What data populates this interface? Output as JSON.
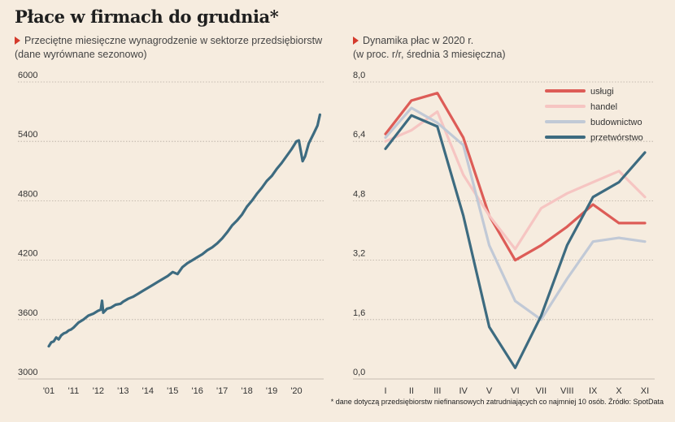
{
  "header": {
    "title": "Płace w firmach do grudnia*",
    "left_subtitle_1": "Przeciętne miesięczne wynagrodzenie w sektorze przedsiębiorstw",
    "left_subtitle_2": "(dane wyrównane sezonowo)",
    "right_subtitle_1": "Dynamika płac w 2020 r.",
    "right_subtitle_2": "(w proc. r/r, średnia 3 miesięczna)"
  },
  "footnote": "* dane dotyczą przedsiębiorstw niefinansowych zatrudniających co najmniej 10 osób. Źródło: SpotData",
  "colors": {
    "line_left": "#3d6b80",
    "uslugi": "#dd5c57",
    "handel": "#f6c5c2",
    "budownictwo": "#c1c9d6",
    "przetworstwo": "#3d6b80",
    "grid": "#b5aca2",
    "triangle": "#d43a2c"
  },
  "chart_data": [
    {
      "type": "line",
      "ylim": [
        3000,
        6000
      ],
      "y_ticks": [
        "3000",
        "3600",
        "4200",
        "4800",
        "5400",
        "6000"
      ],
      "x_ticks": [
        {
          "label": "'01",
          "x": 2001
        },
        {
          "label": "'11",
          "x": 2002
        },
        {
          "label": "'12",
          "x": 2003
        },
        {
          "label": "'13",
          "x": 2004
        },
        {
          "label": "'14",
          "x": 2005
        },
        {
          "label": "'15",
          "x": 2006
        },
        {
          "label": "'16",
          "x": 2007
        },
        {
          "label": "'17",
          "x": 2008
        },
        {
          "label": "'18",
          "x": 2009
        },
        {
          "label": "'19",
          "x": 2010
        },
        {
          "label": "'20",
          "x": 2011
        }
      ],
      "xlim": [
        2001,
        2012.1
      ],
      "series": [
        {
          "x": [
            2001.0,
            2001.1,
            2001.2,
            2001.3,
            2001.4,
            2001.5,
            2001.6,
            2001.7,
            2001.8,
            2001.9,
            2002.0,
            2002.2,
            2002.4,
            2002.6,
            2002.8,
            2003.0,
            2003.1,
            2003.15,
            2003.2,
            2003.35,
            2003.5,
            2003.7,
            2003.9,
            2004.0,
            2004.2,
            2004.4,
            2004.6,
            2004.8,
            2005.0,
            2005.2,
            2005.4,
            2005.6,
            2005.8,
            2006.0,
            2006.2,
            2006.4,
            2006.6,
            2006.8,
            2007.0,
            2007.2,
            2007.4,
            2007.6,
            2007.8,
            2008.0,
            2008.2,
            2008.4,
            2008.6,
            2008.8,
            2009.0,
            2009.2,
            2009.4,
            2009.6,
            2009.8,
            2010.0,
            2010.2,
            2010.4,
            2010.6,
            2010.8,
            2011.0,
            2011.1,
            2011.25,
            2011.35,
            2011.5,
            2011.7,
            2011.85,
            2011.95
          ],
          "values": [
            3330,
            3370,
            3380,
            3420,
            3400,
            3440,
            3460,
            3470,
            3490,
            3500,
            3520,
            3570,
            3600,
            3640,
            3660,
            3690,
            3700,
            3790,
            3670,
            3710,
            3720,
            3750,
            3760,
            3780,
            3810,
            3830,
            3860,
            3890,
            3920,
            3950,
            3980,
            4010,
            4040,
            4080,
            4060,
            4130,
            4170,
            4200,
            4230,
            4260,
            4300,
            4330,
            4370,
            4420,
            4480,
            4550,
            4600,
            4660,
            4740,
            4800,
            4870,
            4930,
            5000,
            5050,
            5120,
            5180,
            5250,
            5320,
            5400,
            5410,
            5200,
            5250,
            5380,
            5480,
            5560,
            5670
          ]
        }
      ]
    },
    {
      "type": "line",
      "categories": [
        "I",
        "II",
        "III",
        "IV",
        "V",
        "VI",
        "VII",
        "VIII",
        "IX",
        "X",
        "XI"
      ],
      "ylim": [
        0,
        8
      ],
      "y_ticks": [
        "0,0",
        "1,6",
        "3,2",
        "4,8",
        "6,4",
        "8,0"
      ],
      "legend_position": "top-right",
      "series": [
        {
          "name": "usługi",
          "color_key": "uslugi",
          "values": [
            6.6,
            7.5,
            7.7,
            6.5,
            4.4,
            3.2,
            3.6,
            4.1,
            4.7,
            4.2,
            4.2
          ]
        },
        {
          "name": "handel",
          "color_key": "handel",
          "values": [
            6.4,
            6.7,
            7.2,
            5.5,
            4.4,
            3.5,
            4.6,
            5.0,
            5.3,
            5.6,
            4.9
          ]
        },
        {
          "name": "budownictwo",
          "color_key": "budownictwo",
          "values": [
            6.5,
            7.3,
            6.9,
            6.3,
            3.6,
            2.1,
            1.6,
            2.7,
            3.7,
            3.8,
            3.7
          ]
        },
        {
          "name": "przetwórstwo",
          "color_key": "przetworstwo",
          "values": [
            6.2,
            7.1,
            6.8,
            4.4,
            1.4,
            0.3,
            1.7,
            3.6,
            4.9,
            5.3,
            6.1
          ]
        }
      ]
    }
  ]
}
